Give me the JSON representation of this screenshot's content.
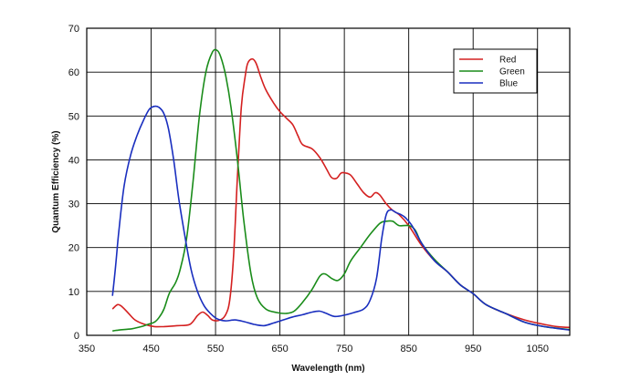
{
  "chart_data": {
    "type": "line",
    "xlabel": "Wavelength (nm)",
    "ylabel": "Quantum Efficiency (%)",
    "xlim": [
      350,
      1100
    ],
    "ylim": [
      0,
      70
    ],
    "xticks": [
      350,
      450,
      550,
      650,
      750,
      850,
      950,
      1050
    ],
    "yticks": [
      0,
      10,
      20,
      30,
      40,
      50,
      60,
      70
    ],
    "grid": true,
    "legend_position": "top-right",
    "series": [
      {
        "name": "Red",
        "color": "#d42020",
        "points": [
          [
            390,
            6
          ],
          [
            398,
            7
          ],
          [
            405,
            6.5
          ],
          [
            415,
            5
          ],
          [
            425,
            3.5
          ],
          [
            440,
            2.5
          ],
          [
            455,
            2
          ],
          [
            470,
            2
          ],
          [
            490,
            2.2
          ],
          [
            510,
            2.5
          ],
          [
            522,
            4.5
          ],
          [
            530,
            5.3
          ],
          [
            538,
            4.5
          ],
          [
            545,
            3.5
          ],
          [
            555,
            3.4
          ],
          [
            565,
            4.5
          ],
          [
            572,
            8
          ],
          [
            578,
            18
          ],
          [
            584,
            36
          ],
          [
            590,
            52
          ],
          [
            596,
            59
          ],
          [
            600,
            62
          ],
          [
            607,
            63
          ],
          [
            613,
            62
          ],
          [
            620,
            59
          ],
          [
            628,
            56
          ],
          [
            640,
            53
          ],
          [
            650,
            51
          ],
          [
            660,
            49.5
          ],
          [
            670,
            48
          ],
          [
            678,
            45.5
          ],
          [
            685,
            43.5
          ],
          [
            700,
            42.5
          ],
          [
            712,
            40.5
          ],
          [
            722,
            38
          ],
          [
            730,
            36
          ],
          [
            738,
            35.8
          ],
          [
            745,
            37
          ],
          [
            752,
            37
          ],
          [
            760,
            36.5
          ],
          [
            770,
            34.5
          ],
          [
            780,
            32.5
          ],
          [
            790,
            31.5
          ],
          [
            798,
            32.5
          ],
          [
            805,
            32
          ],
          [
            815,
            30
          ],
          [
            825,
            28.5
          ],
          [
            835,
            27.5
          ],
          [
            850,
            25
          ],
          [
            870,
            20.5
          ],
          [
            890,
            17
          ],
          [
            910,
            14.5
          ],
          [
            930,
            11.5
          ],
          [
            950,
            9.5
          ],
          [
            970,
            7
          ],
          [
            1000,
            5
          ],
          [
            1030,
            3.5
          ],
          [
            1060,
            2.5
          ],
          [
            1080,
            2
          ],
          [
            1100,
            1.8
          ]
        ]
      },
      {
        "name": "Green",
        "color": "#1a8c1a",
        "points": [
          [
            390,
            1
          ],
          [
            400,
            1.2
          ],
          [
            420,
            1.5
          ],
          [
            435,
            2
          ],
          [
            445,
            2.5
          ],
          [
            455,
            3
          ],
          [
            462,
            4
          ],
          [
            470,
            6
          ],
          [
            478,
            9.5
          ],
          [
            488,
            12
          ],
          [
            495,
            15
          ],
          [
            505,
            22
          ],
          [
            515,
            35
          ],
          [
            525,
            50
          ],
          [
            535,
            60
          ],
          [
            545,
            64.5
          ],
          [
            552,
            65
          ],
          [
            558,
            63.5
          ],
          [
            566,
            59
          ],
          [
            574,
            52
          ],
          [
            584,
            40
          ],
          [
            594,
            26
          ],
          [
            605,
            14
          ],
          [
            615,
            8.5
          ],
          [
            628,
            6
          ],
          [
            645,
            5.2
          ],
          [
            660,
            5
          ],
          [
            672,
            5.5
          ],
          [
            685,
            7.5
          ],
          [
            700,
            10.5
          ],
          [
            712,
            13.5
          ],
          [
            720,
            14
          ],
          [
            730,
            13
          ],
          [
            740,
            12.5
          ],
          [
            750,
            14
          ],
          [
            760,
            17
          ],
          [
            775,
            20
          ],
          [
            790,
            23
          ],
          [
            805,
            25.5
          ],
          [
            815,
            26
          ],
          [
            825,
            26
          ],
          [
            835,
            25
          ],
          [
            850,
            25
          ],
          [
            860,
            24
          ],
          [
            870,
            21
          ],
          [
            890,
            17.3
          ],
          [
            910,
            14.5
          ],
          [
            930,
            11.5
          ],
          [
            950,
            9.5
          ],
          [
            970,
            7
          ],
          [
            1000,
            5
          ],
          [
            1030,
            3
          ],
          [
            1060,
            2
          ],
          [
            1100,
            1.3
          ]
        ]
      },
      {
        "name": "Blue",
        "color": "#1a2fbf",
        "points": [
          [
            390,
            9
          ],
          [
            395,
            16
          ],
          [
            400,
            24
          ],
          [
            408,
            34
          ],
          [
            418,
            41
          ],
          [
            428,
            45.5
          ],
          [
            438,
            49
          ],
          [
            447,
            51.5
          ],
          [
            455,
            52.2
          ],
          [
            462,
            52
          ],
          [
            470,
            50.5
          ],
          [
            477,
            47
          ],
          [
            485,
            40
          ],
          [
            493,
            31
          ],
          [
            502,
            23
          ],
          [
            512,
            15
          ],
          [
            522,
            10
          ],
          [
            532,
            6.8
          ],
          [
            542,
            5
          ],
          [
            552,
            3.8
          ],
          [
            565,
            3.3
          ],
          [
            580,
            3.5
          ],
          [
            595,
            3.1
          ],
          [
            610,
            2.5
          ],
          [
            625,
            2.2
          ],
          [
            640,
            2.8
          ],
          [
            655,
            3.5
          ],
          [
            670,
            4.2
          ],
          [
            685,
            4.7
          ],
          [
            700,
            5.3
          ],
          [
            712,
            5.5
          ],
          [
            722,
            5
          ],
          [
            735,
            4.3
          ],
          [
            750,
            4.6
          ],
          [
            765,
            5.2
          ],
          [
            780,
            6
          ],
          [
            790,
            8
          ],
          [
            800,
            13
          ],
          [
            808,
            22
          ],
          [
            815,
            27.5
          ],
          [
            822,
            28.6
          ],
          [
            830,
            28
          ],
          [
            838,
            27.5
          ],
          [
            845,
            26.8
          ],
          [
            855,
            25
          ],
          [
            870,
            21
          ],
          [
            890,
            17
          ],
          [
            910,
            14.5
          ],
          [
            930,
            11.5
          ],
          [
            950,
            9.5
          ],
          [
            970,
            7
          ],
          [
            1000,
            5
          ],
          [
            1030,
            3
          ],
          [
            1060,
            2
          ],
          [
            1100,
            1.2
          ]
        ]
      }
    ]
  }
}
